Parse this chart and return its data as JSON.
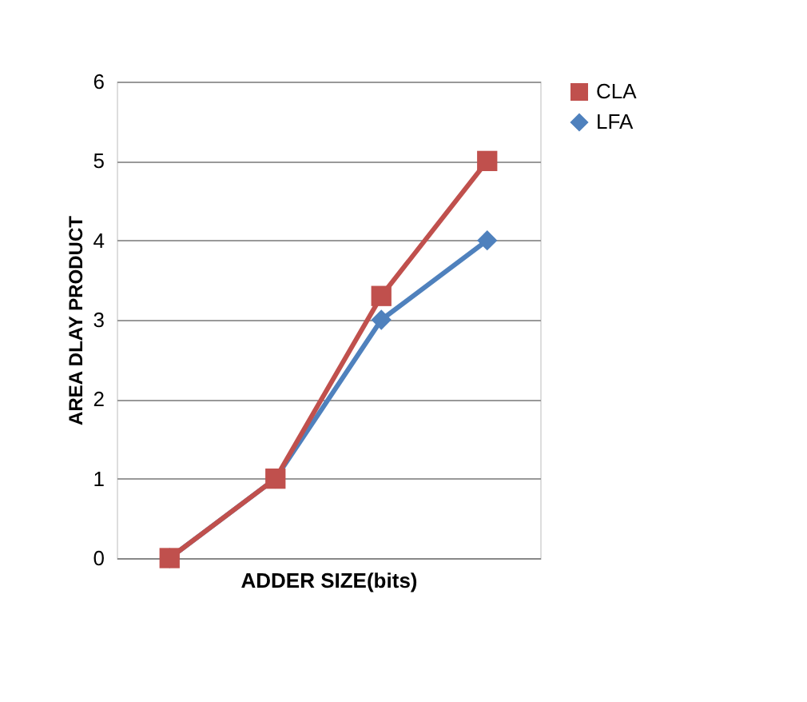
{
  "chart_data": {
    "type": "line",
    "xlabel": "ADDER SIZE(bits)",
    "ylabel": "AREA  DLAY PRODUCT",
    "categories": [
      null,
      null,
      null,
      null
    ],
    "series": [
      {
        "name": "CLA",
        "color": "#c0504d",
        "marker": "square",
        "values": [
          0,
          1,
          3.3,
          5
        ]
      },
      {
        "name": "LFA",
        "color": "#4f81bd",
        "marker": "diamond",
        "values": [
          0,
          1,
          3,
          4
        ]
      }
    ],
    "ylim": [
      0,
      6
    ],
    "yticks": [
      0,
      1,
      2,
      3,
      4,
      5,
      6
    ],
    "grid": "y",
    "legend": "right",
    "tick_labels": "y",
    "line_style": "solid"
  }
}
